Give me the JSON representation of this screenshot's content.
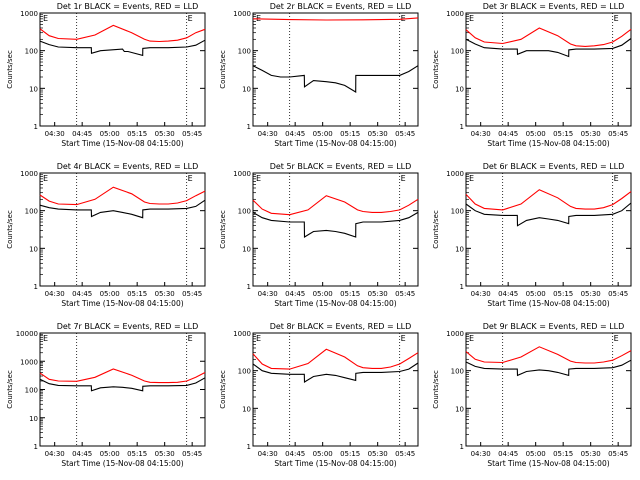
{
  "shared": {
    "ylabel": "Counts/sec",
    "xlabel": "Start Time (15-Nov-08 04:15:00)",
    "x_ticks": [
      "04:30",
      "04:45",
      "05:00",
      "05:15",
      "05:30",
      "05:45"
    ],
    "marker": "E",
    "colors": {
      "events": "#000000",
      "lld": "#ff0000",
      "frame": "#000000"
    }
  },
  "chart_data": [
    {
      "type": "line",
      "title": "Det 1r BLACK = Events, RED = LLD",
      "y_scale": "log",
      "ylim": [
        1,
        1000
      ],
      "y_ticks": [
        "1",
        "10",
        "100",
        "1000"
      ],
      "x_minutes": [
        0,
        90
      ],
      "series": [
        {
          "key": "lld",
          "x": [
            0,
            5,
            10,
            20,
            30,
            40,
            50,
            57,
            60,
            65,
            70,
            75,
            80,
            85,
            90
          ],
          "values": [
            380,
            250,
            210,
            200,
            260,
            470,
            300,
            200,
            180,
            175,
            180,
            190,
            220,
            300,
            370
          ]
        },
        {
          "key": "events",
          "x": [
            0,
            5,
            10,
            20,
            28,
            28.1,
            33,
            45,
            46,
            48,
            56,
            56.1,
            60,
            70,
            80,
            85,
            90
          ],
          "values": [
            180,
            145,
            125,
            120,
            120,
            85,
            100,
            110,
            95,
            95,
            75,
            115,
            120,
            120,
            125,
            140,
            190
          ]
        }
      ]
    },
    {
      "type": "line",
      "title": "Det 2r BLACK = Events, RED = LLD",
      "y_scale": "log",
      "ylim": [
        1,
        1000
      ],
      "y_ticks": [
        "1",
        "10",
        "100",
        "1000"
      ],
      "x_minutes": [
        0,
        90
      ],
      "series": [
        {
          "key": "lld",
          "x": [
            0,
            20,
            40,
            60,
            80,
            90
          ],
          "values": [
            700,
            670,
            650,
            660,
            680,
            740
          ]
        },
        {
          "key": "events",
          "x": [
            0,
            5,
            10,
            15,
            20,
            28,
            28.1,
            33,
            40,
            45,
            50,
            56,
            56.1,
            60,
            70,
            80,
            85,
            90
          ],
          "values": [
            40,
            30,
            22,
            20,
            20,
            22,
            11,
            16,
            15,
            14,
            12,
            8,
            22,
            22,
            22,
            22,
            28,
            40
          ]
        }
      ]
    },
    {
      "type": "line",
      "title": "Det 3r BLACK = Events, RED = LLD",
      "y_scale": "log",
      "ylim": [
        1,
        1000
      ],
      "y_ticks": [
        "1",
        "10",
        "100",
        "1000"
      ],
      "x_minutes": [
        0,
        90
      ],
      "series": [
        {
          "key": "lld",
          "x": [
            0,
            5,
            10,
            20,
            30,
            40,
            50,
            57,
            60,
            65,
            70,
            75,
            80,
            85,
            90
          ],
          "values": [
            360,
            220,
            170,
            155,
            200,
            400,
            250,
            150,
            135,
            130,
            135,
            145,
            170,
            240,
            370
          ]
        },
        {
          "key": "events",
          "x": [
            0,
            5,
            10,
            20,
            28,
            28.1,
            33,
            45,
            50,
            56,
            56.1,
            60,
            70,
            80,
            85,
            90
          ],
          "values": [
            200,
            150,
            120,
            110,
            110,
            80,
            100,
            100,
            90,
            70,
            105,
            110,
            110,
            115,
            140,
            210
          ]
        }
      ]
    },
    {
      "type": "line",
      "title": "Det 4r BLACK = Events, RED = LLD",
      "y_scale": "log",
      "ylim": [
        1,
        1000
      ],
      "y_ticks": [
        "1",
        "10",
        "100",
        "1000"
      ],
      "x_minutes": [
        0,
        90
      ],
      "series": [
        {
          "key": "lld",
          "x": [
            0,
            5,
            10,
            20,
            30,
            40,
            50,
            57,
            60,
            65,
            70,
            75,
            80,
            85,
            90
          ],
          "values": [
            260,
            180,
            150,
            145,
            200,
            420,
            280,
            170,
            155,
            150,
            150,
            160,
            185,
            250,
            330
          ]
        },
        {
          "key": "events",
          "x": [
            0,
            5,
            10,
            20,
            28,
            28.1,
            33,
            40,
            45,
            50,
            56,
            56.1,
            60,
            70,
            80,
            85,
            90
          ],
          "values": [
            140,
            120,
            110,
            105,
            105,
            70,
            90,
            100,
            90,
            80,
            65,
            105,
            110,
            110,
            115,
            130,
            190
          ]
        }
      ]
    },
    {
      "type": "line",
      "title": "Det 5r BLACK = Events, RED = LLD",
      "y_scale": "log",
      "ylim": [
        1,
        1000
      ],
      "y_ticks": [
        "1",
        "10",
        "100",
        "1000"
      ],
      "x_minutes": [
        0,
        90
      ],
      "series": [
        {
          "key": "lld",
          "x": [
            0,
            5,
            10,
            20,
            30,
            40,
            50,
            57,
            60,
            65,
            70,
            75,
            80,
            85,
            90
          ],
          "values": [
            190,
            110,
            85,
            78,
            105,
            250,
            170,
            105,
            95,
            90,
            90,
            95,
            105,
            140,
            200
          ]
        },
        {
          "key": "events",
          "x": [
            0,
            5,
            10,
            20,
            28,
            28.1,
            33,
            40,
            45,
            50,
            56,
            56.1,
            60,
            70,
            80,
            85,
            90
          ],
          "values": [
            90,
            65,
            55,
            50,
            50,
            20,
            28,
            30,
            28,
            25,
            20,
            45,
            50,
            50,
            55,
            65,
            90
          ]
        }
      ]
    },
    {
      "type": "line",
      "title": "Det 6r BLACK = Events, RED = LLD",
      "y_scale": "log",
      "ylim": [
        1,
        1000
      ],
      "y_ticks": [
        "1",
        "10",
        "100",
        "1000"
      ],
      "x_minutes": [
        0,
        90
      ],
      "series": [
        {
          "key": "lld",
          "x": [
            0,
            5,
            10,
            20,
            30,
            40,
            50,
            57,
            60,
            65,
            70,
            75,
            80,
            85,
            90
          ],
          "values": [
            270,
            150,
            115,
            105,
            150,
            360,
            220,
            130,
            115,
            110,
            110,
            120,
            145,
            210,
            320
          ]
        },
        {
          "key": "events",
          "x": [
            0,
            5,
            10,
            20,
            28,
            28.1,
            33,
            40,
            45,
            50,
            56,
            56.1,
            60,
            70,
            80,
            85,
            90
          ],
          "values": [
            150,
            100,
            80,
            75,
            75,
            40,
            55,
            65,
            60,
            55,
            45,
            70,
            75,
            75,
            80,
            100,
            160
          ]
        }
      ]
    },
    {
      "type": "line",
      "title": "Det 7r BLACK = Events, RED = LLD",
      "y_scale": "log",
      "ylim": [
        1,
        10000
      ],
      "y_ticks": [
        "1",
        "10",
        "100",
        "1000",
        "10000"
      ],
      "x_minutes": [
        0,
        90
      ],
      "series": [
        {
          "key": "lld",
          "x": [
            0,
            5,
            10,
            20,
            30,
            40,
            50,
            57,
            60,
            65,
            70,
            75,
            80,
            85,
            90
          ],
          "values": [
            380,
            230,
            200,
            195,
            270,
            530,
            320,
            200,
            180,
            175,
            175,
            180,
            200,
            270,
            400
          ]
        },
        {
          "key": "events",
          "x": [
            0,
            5,
            10,
            20,
            28,
            28.1,
            33,
            40,
            45,
            50,
            56,
            56.1,
            60,
            70,
            80,
            85,
            90
          ],
          "values": [
            230,
            160,
            140,
            135,
            135,
            90,
            115,
            125,
            120,
            110,
            90,
            130,
            135,
            135,
            140,
            170,
            260
          ]
        }
      ]
    },
    {
      "type": "line",
      "title": "Det 8r BLACK = Events, RED = LLD",
      "y_scale": "log",
      "ylim": [
        1,
        1000
      ],
      "y_ticks": [
        "1",
        "10",
        "100",
        "1000"
      ],
      "x_minutes": [
        0,
        90
      ],
      "series": [
        {
          "key": "lld",
          "x": [
            0,
            5,
            10,
            20,
            30,
            40,
            50,
            57,
            60,
            65,
            70,
            75,
            80,
            85,
            90
          ],
          "values": [
            280,
            150,
            115,
            110,
            155,
            370,
            230,
            135,
            120,
            115,
            115,
            125,
            150,
            210,
            300
          ]
        },
        {
          "key": "events",
          "x": [
            0,
            5,
            10,
            20,
            28,
            28.1,
            33,
            40,
            45,
            50,
            56,
            56.1,
            60,
            70,
            80,
            85,
            90
          ],
          "values": [
            150,
            100,
            85,
            80,
            80,
            50,
            70,
            80,
            75,
            65,
            55,
            85,
            90,
            90,
            95,
            110,
            160
          ]
        }
      ]
    },
    {
      "type": "line",
      "title": "Det 9r BLACK = Events, RED = LLD",
      "y_scale": "log",
      "ylim": [
        1,
        1000
      ],
      "y_ticks": [
        "1",
        "10",
        "100",
        "1000"
      ],
      "x_minutes": [
        0,
        90
      ],
      "series": [
        {
          "key": "lld",
          "x": [
            0,
            5,
            10,
            20,
            30,
            40,
            50,
            57,
            60,
            65,
            70,
            75,
            80,
            85,
            90
          ],
          "values": [
            320,
            200,
            170,
            165,
            230,
            430,
            270,
            180,
            165,
            160,
            160,
            170,
            190,
            250,
            340
          ]
        },
        {
          "key": "events",
          "x": [
            0,
            5,
            10,
            20,
            28,
            28.1,
            33,
            40,
            45,
            50,
            56,
            56.1,
            60,
            70,
            80,
            85,
            90
          ],
          "values": [
            170,
            130,
            115,
            110,
            110,
            75,
            95,
            105,
            100,
            90,
            75,
            110,
            115,
            115,
            120,
            140,
            190
          ]
        }
      ]
    }
  ]
}
